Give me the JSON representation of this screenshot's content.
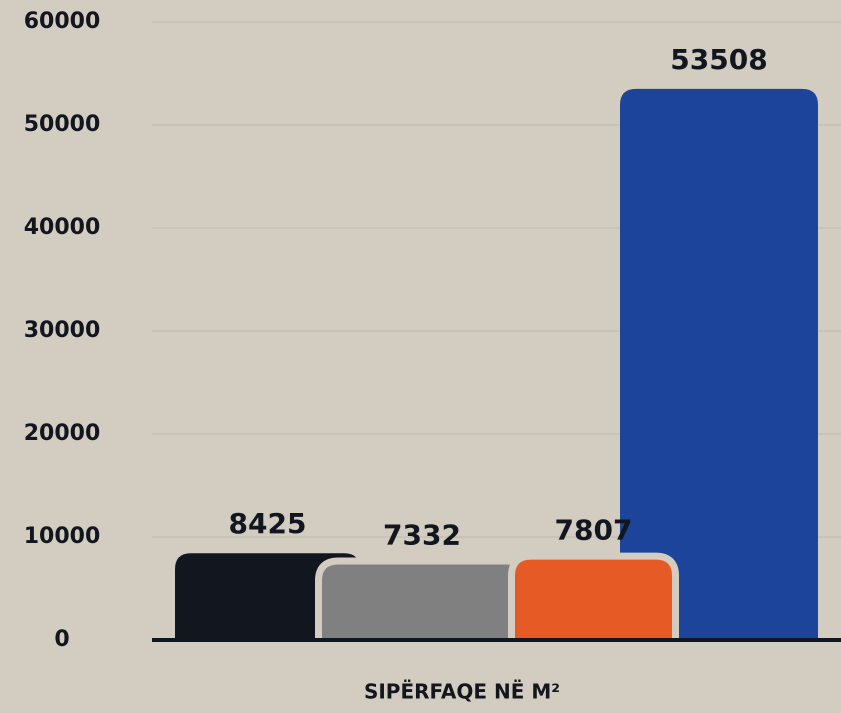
{
  "chart_data": {
    "type": "bar",
    "x_label": "SIPËRFAQE NË M²",
    "categories": [
      null,
      null,
      null,
      null
    ],
    "values": [
      8425,
      7332,
      7807,
      53508
    ],
    "colors": [
      "#11161f",
      "#808080",
      "#e55a25",
      "#1c449b"
    ],
    "ylim": [
      0,
      60000
    ],
    "yticks": [
      0,
      10000,
      20000,
      30000,
      40000,
      50000,
      60000
    ],
    "grid": true
  }
}
